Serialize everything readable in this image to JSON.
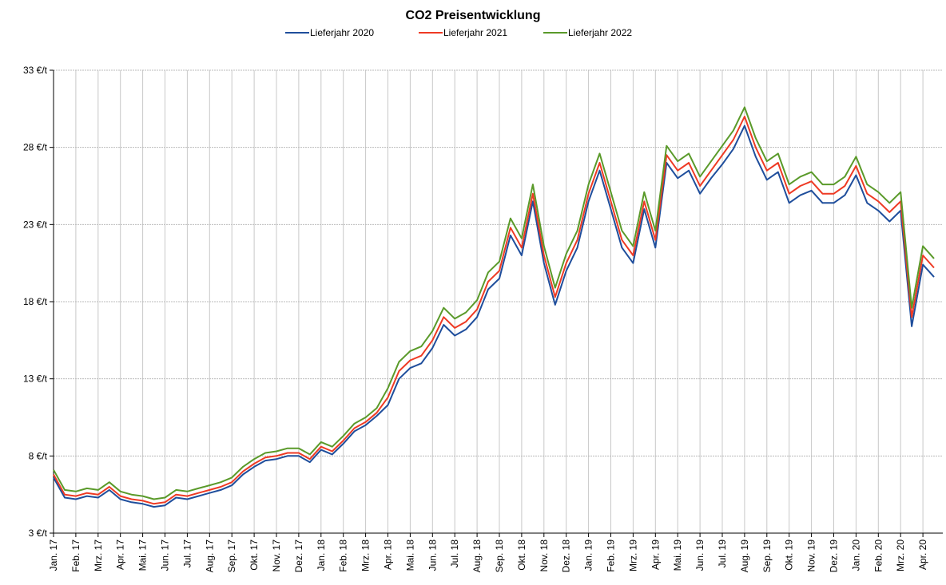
{
  "chart_data": {
    "type": "line",
    "title": "CO2 Preisentwicklung",
    "categories": [
      "Jan. 17",
      null,
      "Feb. 17",
      null,
      "Mrz. 17",
      null,
      "Apr. 17",
      null,
      "Mai. 17",
      null,
      "Jun. 17",
      null,
      "Jul. 17",
      null,
      "Aug. 17",
      null,
      "Sep. 17",
      null,
      "Okt. 17",
      null,
      "Nov. 17",
      null,
      "Dez. 17",
      null,
      "Jan. 18",
      null,
      "Feb. 18",
      null,
      "Mrz. 18",
      null,
      "Apr. 18",
      null,
      "Mai. 18",
      null,
      "Jun. 18",
      null,
      "Jul. 18",
      null,
      "Aug. 18",
      null,
      "Sep. 18",
      null,
      "Okt. 18",
      null,
      "Nov. 18",
      null,
      "Dez. 18",
      null,
      "Jan. 19",
      null,
      "Feb. 19",
      null,
      "Mrz. 19",
      null,
      "Apr. 19",
      null,
      "Mai. 19",
      null,
      "Jun. 19",
      null,
      "Jul. 19",
      null,
      "Aug. 19",
      null,
      "Sep. 19",
      null,
      "Okt. 19",
      null,
      "Nov. 19",
      null,
      "Dez. 19",
      null,
      "Jan. 20",
      null,
      "Feb. 20",
      null,
      "Mrz. 20",
      null,
      "Apr. 20",
      null
    ],
    "series": [
      {
        "name": "Lieferjahr 2020",
        "color": "#1f4e9c",
        "values": [
          6.6,
          5.3,
          5.2,
          5.4,
          5.3,
          5.8,
          5.2,
          5.0,
          4.9,
          4.7,
          4.8,
          5.3,
          5.2,
          5.4,
          5.6,
          5.8,
          6.1,
          6.8,
          7.3,
          7.7,
          7.8,
          8.0,
          8.0,
          7.6,
          8.4,
          8.1,
          8.8,
          9.6,
          10.0,
          10.6,
          11.3,
          13.0,
          13.7,
          14.0,
          15.0,
          16.5,
          15.8,
          16.2,
          17.0,
          18.8,
          19.5,
          22.3,
          21.0,
          24.5,
          20.5,
          17.8,
          20.0,
          21.5,
          24.5,
          26.5,
          24.0,
          21.5,
          20.5,
          24.0,
          21.5,
          27.0,
          26.0,
          26.5,
          25.0,
          26.0,
          26.9,
          27.9,
          29.4,
          27.4,
          25.9,
          26.4,
          24.4,
          24.9,
          25.2,
          24.4,
          24.4,
          24.9,
          26.2,
          24.4,
          23.9,
          23.2,
          23.9,
          16.4,
          20.4,
          19.6
        ]
      },
      {
        "name": "Lieferjahr 2021",
        "color": "#ee3a24",
        "values": [
          6.8,
          5.5,
          5.4,
          5.6,
          5.5,
          6.0,
          5.4,
          5.2,
          5.1,
          4.9,
          5.0,
          5.5,
          5.4,
          5.6,
          5.8,
          6.0,
          6.3,
          7.0,
          7.5,
          7.9,
          8.0,
          8.2,
          8.2,
          7.8,
          8.6,
          8.3,
          9.0,
          9.8,
          10.2,
          10.8,
          11.8,
          13.5,
          14.2,
          14.5,
          15.5,
          17.0,
          16.3,
          16.7,
          17.5,
          19.3,
          20.0,
          22.8,
          21.5,
          25.0,
          21.0,
          18.3,
          20.5,
          22.0,
          25.0,
          27.0,
          24.5,
          22.0,
          21.0,
          24.5,
          22.0,
          27.5,
          26.5,
          27.0,
          25.5,
          26.5,
          27.5,
          28.5,
          30.0,
          28.0,
          26.5,
          27.0,
          25.0,
          25.5,
          25.8,
          25.0,
          25.0,
          25.5,
          26.8,
          25.0,
          24.5,
          23.8,
          24.5,
          17.0,
          21.0,
          20.2
        ]
      },
      {
        "name": "Lieferjahr 2022",
        "color": "#5a9a2a",
        "values": [
          7.1,
          5.8,
          5.7,
          5.9,
          5.8,
          6.3,
          5.7,
          5.5,
          5.4,
          5.2,
          5.3,
          5.8,
          5.7,
          5.9,
          6.1,
          6.3,
          6.6,
          7.3,
          7.8,
          8.2,
          8.3,
          8.5,
          8.5,
          8.1,
          8.9,
          8.6,
          9.3,
          10.1,
          10.5,
          11.1,
          12.4,
          14.1,
          14.8,
          15.1,
          16.1,
          17.6,
          16.9,
          17.3,
          18.1,
          19.9,
          20.6,
          23.4,
          22.1,
          25.6,
          21.6,
          18.9,
          21.1,
          22.6,
          25.6,
          27.6,
          25.1,
          22.6,
          21.6,
          25.1,
          22.6,
          28.1,
          27.1,
          27.6,
          26.1,
          27.1,
          28.1,
          29.1,
          30.6,
          28.6,
          27.1,
          27.6,
          25.6,
          26.1,
          26.4,
          25.6,
          25.6,
          26.1,
          27.4,
          25.6,
          25.1,
          24.4,
          25.1,
          17.6,
          21.6,
          20.8
        ]
      }
    ],
    "ylim": [
      3,
      33
    ],
    "yticks": [
      {
        "value": 3,
        "label": "3 €/t"
      },
      {
        "value": 8,
        "label": "8 €/t"
      },
      {
        "value": 13,
        "label": "13 €/t"
      },
      {
        "value": 18,
        "label": "18 €/t"
      },
      {
        "value": 23,
        "label": "23 €/t"
      },
      {
        "value": 28,
        "label": "28 €/t"
      },
      {
        "value": 33,
        "label": "33 €/t"
      }
    ],
    "grid": true,
    "legend": "top"
  }
}
